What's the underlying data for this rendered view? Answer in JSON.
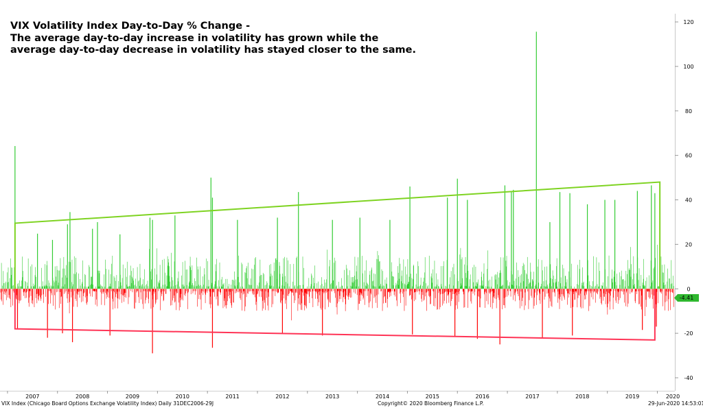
{
  "chart_data": {
    "type": "bar",
    "title_lines": [
      "VIX Volatility Index Day-to-Day % Change -",
      "The average day-to-day increase in volatility has grown while the",
      "average day-to-day decrease in volatility has stayed closer to the same."
    ],
    "ylim": [
      -40,
      120
    ],
    "y_ticks": [
      120,
      100,
      80,
      60,
      40,
      20,
      0,
      -20,
      -40
    ],
    "xlim": [
      2006.85,
      2020.35
    ],
    "x_ticks": [
      "2007",
      "2008",
      "2009",
      "2010",
      "2011",
      "2012",
      "2013",
      "2014",
      "2015",
      "2016",
      "2017",
      "2018",
      "2019",
      "2020"
    ],
    "positive_color": "#33cc33",
    "negative_color": "#ff0000",
    "spikes": [
      {
        "x": 2007.15,
        "y": 64.2
      },
      {
        "x": 2007.6,
        "y": 24.8
      },
      {
        "x": 2007.9,
        "y": 22.0
      },
      {
        "x": 2008.2,
        "y": 29.0
      },
      {
        "x": 2008.25,
        "y": 34.5
      },
      {
        "x": 2008.7,
        "y": 27.0
      },
      {
        "x": 2008.8,
        "y": 30.0
      },
      {
        "x": 2009.25,
        "y": 24.5
      },
      {
        "x": 2009.85,
        "y": 32.0
      },
      {
        "x": 2009.9,
        "y": 31.0
      },
      {
        "x": 2010.35,
        "y": 33.0
      },
      {
        "x": 2011.07,
        "y": 50.0
      },
      {
        "x": 2011.1,
        "y": 41.0
      },
      {
        "x": 2011.6,
        "y": 31.0
      },
      {
        "x": 2012.4,
        "y": 32.0
      },
      {
        "x": 2012.82,
        "y": 43.5
      },
      {
        "x": 2013.5,
        "y": 31.0
      },
      {
        "x": 2014.05,
        "y": 32.0
      },
      {
        "x": 2014.65,
        "y": 31.0
      },
      {
        "x": 2015.05,
        "y": 46.0
      },
      {
        "x": 2015.8,
        "y": 41.0
      },
      {
        "x": 2016.0,
        "y": 49.5
      },
      {
        "x": 2016.2,
        "y": 40.0
      },
      {
        "x": 2016.95,
        "y": 46.5
      },
      {
        "x": 2017.08,
        "y": 43.5
      },
      {
        "x": 2017.12,
        "y": 44.5
      },
      {
        "x": 2017.58,
        "y": 115.6
      },
      {
        "x": 2017.85,
        "y": 30.0
      },
      {
        "x": 2018.05,
        "y": 43.5
      },
      {
        "x": 2018.25,
        "y": 43.0
      },
      {
        "x": 2018.6,
        "y": 38.0
      },
      {
        "x": 2018.95,
        "y": 40.0
      },
      {
        "x": 2019.15,
        "y": 40.0
      },
      {
        "x": 2019.6,
        "y": 44.0
      },
      {
        "x": 2019.88,
        "y": 46.5
      },
      {
        "x": 2019.95,
        "y": 43.0
      },
      {
        "x": 2007.2,
        "y": -18.0
      },
      {
        "x": 2007.8,
        "y": -22.0
      },
      {
        "x": 2008.1,
        "y": -20.0
      },
      {
        "x": 2008.3,
        "y": -24.0
      },
      {
        "x": 2009.05,
        "y": -21.0
      },
      {
        "x": 2009.9,
        "y": -29.0
      },
      {
        "x": 2011.1,
        "y": -26.5
      },
      {
        "x": 2012.5,
        "y": -20.0
      },
      {
        "x": 2013.3,
        "y": -21.0
      },
      {
        "x": 2015.1,
        "y": -20.5
      },
      {
        "x": 2015.95,
        "y": -21.5
      },
      {
        "x": 2016.4,
        "y": -22.5
      },
      {
        "x": 2016.85,
        "y": -25.0
      },
      {
        "x": 2017.7,
        "y": -22.0
      },
      {
        "x": 2018.3,
        "y": -21.0
      },
      {
        "x": 2019.7,
        "y": -18.5
      },
      {
        "x": 2019.98,
        "y": -17.0
      }
    ],
    "upper_trendline": {
      "color": "#7ed321",
      "start": [
        2007.15,
        29.5
      ],
      "end": [
        2020.05,
        48.0
      ],
      "end_drop": [
        2020.05,
        0
      ]
    },
    "lower_trendline": {
      "color": "#ff3355",
      "start": [
        2007.15,
        -18.0
      ],
      "end": [
        2019.95,
        -23.0
      ],
      "end_rise": [
        2019.95,
        0
      ]
    },
    "last_value_label": "-4.41"
  },
  "footer": {
    "left": "VIX Index (Chicago Board Options Exchange Volatility Index)  Daily 31DEC2006-29J",
    "center": "Copyright© 2020 Bloomberg Finance L.P.",
    "right": "29-Jun-2020 14:53:01"
  }
}
